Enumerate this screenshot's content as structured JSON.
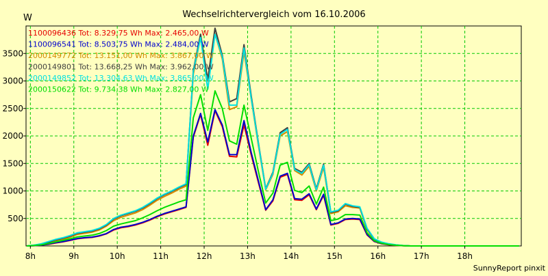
{
  "chart_data": {
    "type": "line",
    "title": "Wechselrichtervergleich vom 16.10.2006",
    "ylabel": "W",
    "xlabel": "",
    "footer": "SunnyReport pinxit",
    "ylim": [
      0,
      4000
    ],
    "y_ticks": [
      500,
      1000,
      1500,
      2000,
      2500,
      3000,
      3500
    ],
    "x_range": [
      7.9,
      19.3
    ],
    "x_ticks": [
      {
        "x": 8,
        "label": "8h"
      },
      {
        "x": 9,
        "label": "9h"
      },
      {
        "x": 10,
        "label": "10h"
      },
      {
        "x": 11,
        "label": "11h"
      },
      {
        "x": 12,
        "label": "12h"
      },
      {
        "x": 13,
        "label": "13h"
      },
      {
        "x": 14,
        "label": "14h"
      },
      {
        "x": 15,
        "label": "15h"
      },
      {
        "x": 16,
        "label": "16h"
      },
      {
        "x": 17,
        "label": "17h"
      },
      {
        "x": 18,
        "label": "18h"
      }
    ],
    "grid": true,
    "legend_position": "top-left",
    "colors": {
      "background": "#ffffc0",
      "plot_background": "#ffffc0",
      "grid": "#00c800",
      "axis": "#000000"
    },
    "x": [
      7.917,
      8.083,
      8.25,
      8.417,
      8.583,
      8.75,
      8.917,
      9.083,
      9.25,
      9.417,
      9.583,
      9.75,
      9.917,
      10.083,
      10.25,
      10.417,
      10.583,
      10.75,
      10.917,
      11.083,
      11.25,
      11.417,
      11.583,
      11.75,
      11.917,
      12.083,
      12.25,
      12.417,
      12.583,
      12.75,
      12.917,
      13.083,
      13.25,
      13.417,
      13.583,
      13.75,
      13.917,
      14.083,
      14.25,
      14.417,
      14.583,
      14.75,
      14.917,
      15.083,
      15.25,
      15.417,
      15.583,
      15.75,
      15.917,
      16.083,
      16.25,
      16.417,
      16.583,
      16.75,
      16.917,
      17.083,
      17.25,
      17.417,
      17.583,
      17.75,
      17.917,
      18.083,
      18.25,
      18.417,
      18.583,
      18.75,
      18.917,
      19.083,
      19.25
    ],
    "series": [
      {
        "name": "1100096436",
        "label": "1100096436 Tot: 8.329,75 Wh Max: 2.465,00 W",
        "color": "#e60000",
        "values": [
          0,
          5,
          15,
          30,
          55,
          75,
          100,
          130,
          145,
          155,
          180,
          220,
          290,
          330,
          350,
          380,
          420,
          470,
          530,
          580,
          620,
          660,
          700,
          1980,
          2390,
          1830,
          2460,
          2170,
          1630,
          1620,
          2200,
          1660,
          1150,
          650,
          820,
          1250,
          1300,
          840,
          830,
          930,
          660,
          920,
          380,
          410,
          480,
          490,
          480,
          200,
          80,
          40,
          20,
          10,
          5,
          0,
          0,
          0,
          0,
          0,
          0,
          0,
          0,
          0,
          0,
          0,
          0,
          0,
          0,
          0,
          0
        ]
      },
      {
        "name": "1100096541",
        "label": "1100096541 Tot: 8.503,75 Wh Max: 2.484,00 W",
        "color": "#0000cc",
        "values": [
          0,
          5,
          15,
          35,
          60,
          80,
          105,
          135,
          150,
          160,
          185,
          225,
          300,
          340,
          360,
          390,
          430,
          480,
          540,
          590,
          630,
          670,
          710,
          2000,
          2410,
          1890,
          2480,
          2200,
          1660,
          1660,
          2280,
          1700,
          1180,
          660,
          840,
          1270,
          1320,
          860,
          850,
          950,
          670,
          940,
          390,
          420,
          490,
          500,
          490,
          210,
          85,
          45,
          25,
          12,
          5,
          0,
          0,
          0,
          0,
          0,
          0,
          0,
          0,
          0,
          0,
          0,
          0,
          0,
          0,
          0,
          0
        ]
      },
      {
        "name": "2000149772",
        "label": "2000149772 Tot: 13.151,00 Wh Max: 3.867,00 W",
        "color": "#d48a00",
        "values": [
          0,
          10,
          30,
          60,
          95,
          120,
          160,
          210,
          230,
          250,
          290,
          360,
          460,
          520,
          560,
          600,
          660,
          740,
          830,
          900,
          960,
          1030,
          1090,
          3120,
          3800,
          3000,
          3860,
          3400,
          2480,
          2530,
          3530,
          2680,
          1820,
          1020,
          1300,
          2000,
          2080,
          1370,
          1290,
          1450,
          1000,
          1430,
          590,
          620,
          730,
          700,
          690,
          300,
          120,
          60,
          30,
          15,
          5,
          0,
          0,
          0,
          0,
          0,
          0,
          0,
          0,
          0,
          0,
          0,
          0,
          0,
          0,
          0,
          0
        ]
      },
      {
        "name": "2000149801",
        "label": "2000149801 Tot: 13.668,25 Wh Max: 3.962,00 W",
        "color": "#404040",
        "values": [
          0,
          12,
          35,
          70,
          110,
          140,
          180,
          230,
          250,
          270,
          310,
          380,
          490,
          550,
          590,
          630,
          690,
          770,
          860,
          930,
          990,
          1060,
          1120,
          3190,
          3850,
          3020,
          3960,
          3470,
          2620,
          2680,
          3660,
          2730,
          1870,
          1040,
          1340,
          2060,
          2150,
          1410,
          1340,
          1500,
          1040,
          1490,
          610,
          640,
          760,
          720,
          700,
          310,
          125,
          65,
          35,
          18,
          6,
          0,
          0,
          0,
          0,
          0,
          0,
          0,
          0,
          0,
          0,
          0,
          0,
          0,
          0,
          0,
          0
        ]
      },
      {
        "name": "2000149852",
        "label": "2000149852 Tot: 13.304,63 Wh Max: 3.865,00 W",
        "color": "#00e0e0",
        "values": [
          0,
          15,
          40,
          80,
          120,
          150,
          190,
          240,
          260,
          280,
          320,
          390,
          500,
          560,
          600,
          640,
          700,
          780,
          870,
          940,
          1000,
          1070,
          1130,
          3170,
          3790,
          2850,
          3850,
          3440,
          2560,
          2560,
          3600,
          2690,
          1850,
          1030,
          1320,
          2030,
          2120,
          1390,
          1320,
          1480,
          1020,
          1470,
          620,
          650,
          770,
          730,
          710,
          320,
          130,
          70,
          40,
          20,
          8,
          0,
          0,
          0,
          0,
          0,
          0,
          0,
          0,
          0,
          0,
          0,
          0,
          0,
          0,
          0,
          0
        ]
      },
      {
        "name": "2000150622",
        "label": "2000150622 Tot: 9.734,38 Wh Max: 2.827,00 W",
        "color": "#00dd00",
        "values": [
          0,
          8,
          20,
          45,
          75,
          100,
          130,
          165,
          180,
          195,
          225,
          280,
          360,
          400,
          430,
          460,
          510,
          570,
          640,
          700,
          750,
          800,
          840,
          2330,
          2750,
          2100,
          2820,
          2500,
          1910,
          1850,
          2560,
          1960,
          1350,
          780,
          960,
          1470,
          1520,
          1010,
          970,
          1090,
          760,
          1070,
          460,
          490,
          570,
          570,
          560,
          240,
          95,
          50,
          25,
          12,
          5,
          0,
          0,
          0,
          0,
          0,
          0,
          0,
          0,
          0,
          0,
          0,
          0,
          0,
          0,
          0,
          0
        ]
      }
    ]
  }
}
